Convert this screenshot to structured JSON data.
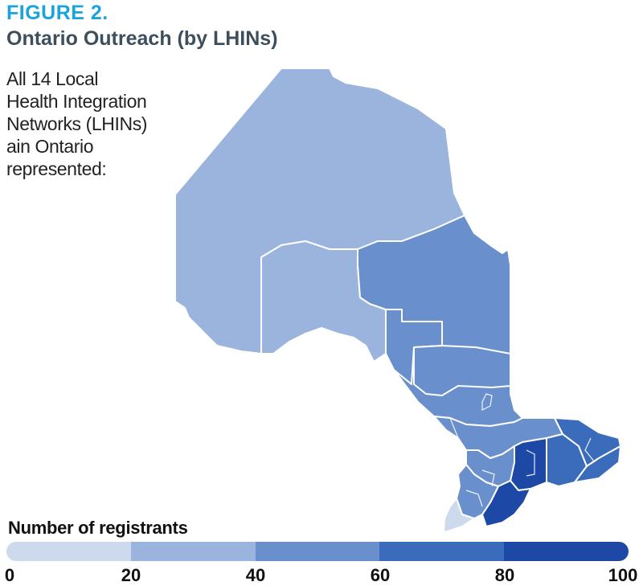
{
  "header": {
    "figure_label": "FIGURE 2.",
    "title": "Ontario Outreach (by LHINs)"
  },
  "description": {
    "lines": [
      "All 14 Local",
      "Health Integration",
      "Networks (LHINs)",
      "ain Ontario",
      "represented:"
    ]
  },
  "legend": {
    "title": "Number of registrants",
    "ticks": [
      "0",
      "20",
      "40",
      "60",
      "80",
      "100"
    ],
    "bins": [
      {
        "range": [
          0,
          20
        ],
        "color": "#cdd9ec"
      },
      {
        "range": [
          20,
          40
        ],
        "color": "#9bb4dd"
      },
      {
        "range": [
          40,
          60
        ],
        "color": "#6990cc"
      },
      {
        "range": [
          60,
          80
        ],
        "color": "#3b6bbb"
      },
      {
        "range": [
          80,
          100
        ],
        "color": "#1d48a6"
      }
    ]
  },
  "map_regions": [
    {
      "name": "north-west",
      "bin": 1
    },
    {
      "name": "north-central",
      "bin": 1
    },
    {
      "name": "north-east",
      "bin": 2
    },
    {
      "name": "north-east-inner-a",
      "bin": 2
    },
    {
      "name": "north-east-inner-b",
      "bin": 2
    },
    {
      "name": "north-simcoe",
      "bin": 2
    },
    {
      "name": "central",
      "bin": 4
    },
    {
      "name": "central-east",
      "bin": 3
    },
    {
      "name": "south-east",
      "bin": 3
    },
    {
      "name": "champlain",
      "bin": 3
    },
    {
      "name": "waterloo-wellington",
      "bin": 2
    },
    {
      "name": "hamilton-niagara",
      "bin": 4
    },
    {
      "name": "south-west",
      "bin": 2
    },
    {
      "name": "erie-st-clair",
      "bin": 0
    }
  ]
}
